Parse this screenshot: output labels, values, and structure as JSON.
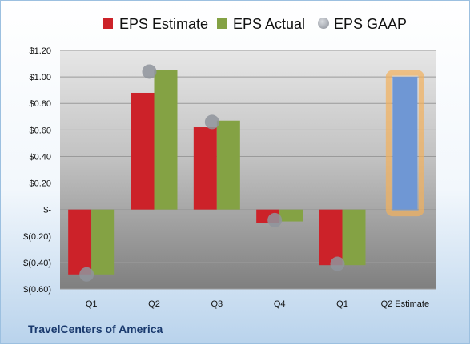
{
  "company": "TravelCenters of America",
  "chart_data": {
    "type": "bar",
    "categories": [
      "Q1",
      "Q2",
      "Q3",
      "Q4",
      "Q1",
      "Q2 Estimate"
    ],
    "series": [
      {
        "name": "EPS Estimate",
        "color": "#cc2229",
        "values": [
          -0.49,
          0.88,
          0.62,
          -0.1,
          -0.42,
          null
        ]
      },
      {
        "name": "EPS Actual",
        "color": "#84a244",
        "values": [
          -0.49,
          1.05,
          0.67,
          -0.09,
          -0.42,
          null
        ]
      },
      {
        "name": "EPS GAAP",
        "color": "#b5b9c0",
        "values": [
          -0.49,
          1.04,
          0.66,
          -0.08,
          -0.41,
          null
        ]
      }
    ],
    "estimate_bar": {
      "category": "Q2 Estimate",
      "value": 1.0,
      "color": "#6f97d4",
      "glow": "#f2b15c"
    },
    "ylim": [
      -0.6,
      1.2
    ],
    "yticks": [
      -0.6,
      -0.4,
      -0.2,
      0,
      0.2,
      0.4,
      0.6,
      0.8,
      1.0,
      1.2
    ],
    "ytick_labels": [
      "$(0.60)",
      "$(0.40)",
      "$(0.20)",
      "$-",
      "$0.20",
      "$0.40",
      "$0.60",
      "$0.80",
      "$1.00",
      "$1.20"
    ],
    "legend_position": "top",
    "grid": true
  }
}
